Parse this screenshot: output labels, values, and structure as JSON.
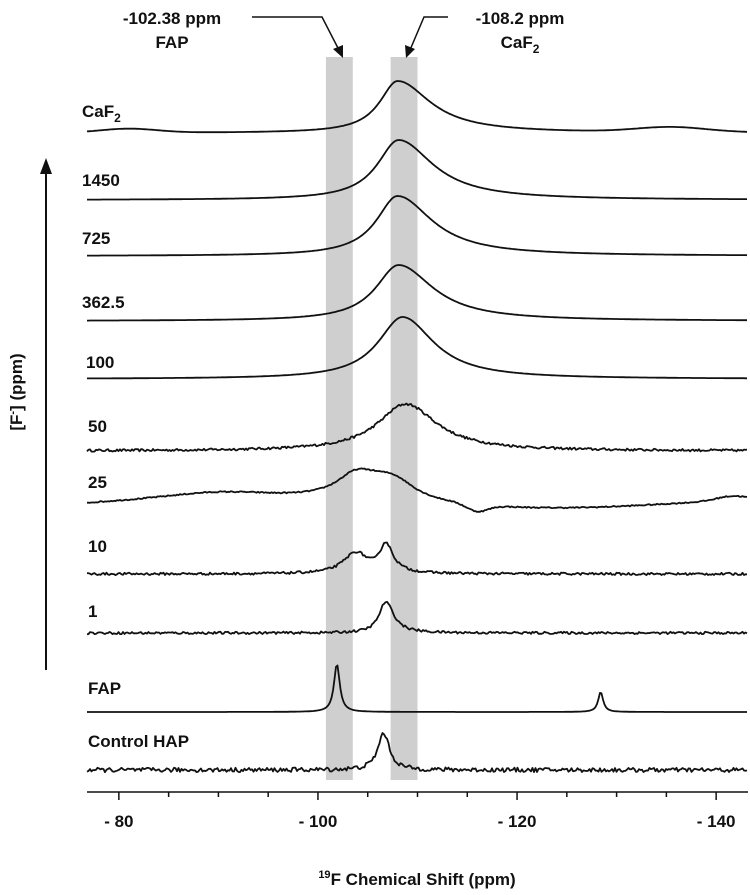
{
  "chart_data": {
    "type": "line",
    "title": "",
    "xlabel_sup": "19",
    "xlabel_main": "F Chemical Shift (ppm)",
    "ylabel_main": "[F",
    "ylabel_sup": "-",
    "ylabel_tail": "] (ppm)",
    "xlim": [
      -76.8,
      -143.2
    ],
    "x_reversed": true,
    "x_ticks": [
      -80,
      -100,
      -120,
      -140
    ],
    "x_tick_labels": [
      "- 80",
      "- 100",
      "- 120",
      "- 140"
    ],
    "grid": false,
    "legend": "none",
    "reference_bands": [
      {
        "label_line1": "-102.38 ppm",
        "label_line2": "FAP",
        "center": -102.15,
        "from": -100.8,
        "to": -103.5
      },
      {
        "label_line1": "-108.2 ppm",
        "label_line2": "CaF",
        "label_line2_sub": "2",
        "center": -108.2,
        "from": -107.3,
        "to": -110.0
      }
    ],
    "series": [
      {
        "name": "CaF",
        "name_sub": "2",
        "noise": 0.0,
        "tilt": 0,
        "baseline_features": [
          {
            "x": -81,
            "amp": 4,
            "w": 4
          },
          {
            "x": -135.5,
            "amp": 5,
            "w": 5
          }
        ],
        "peaks": [
          {
            "x": -108.0,
            "amp": 52,
            "wl": 2.2,
            "wr": 4.0
          }
        ]
      },
      {
        "name": "1450",
        "noise": 0.0,
        "tilt": 0,
        "peaks": [
          {
            "x": -108.1,
            "amp": 60,
            "wl": 2.6,
            "wr": 4.2
          }
        ]
      },
      {
        "name": "725",
        "noise": 0.0,
        "tilt": 0,
        "peaks": [
          {
            "x": -108.0,
            "amp": 60,
            "wl": 2.6,
            "wr": 4.2
          }
        ]
      },
      {
        "name": "362.5",
        "noise": 0.0,
        "tilt": 0,
        "peaks": [
          {
            "x": -108.1,
            "amp": 56,
            "wl": 2.8,
            "wr": 4.2
          }
        ]
      },
      {
        "name": "100",
        "noise": 0.0,
        "tilt": 0,
        "peaks": [
          {
            "x": -108.5,
            "amp": 62,
            "wl": 3.0,
            "wr": 3.8
          }
        ]
      },
      {
        "name": "50",
        "noise": 1.2,
        "tilt": 0,
        "peaks": [
          {
            "x": -108.8,
            "amp": 47,
            "wl": 3.4,
            "wr": 3.8
          }
        ]
      },
      {
        "name": "25",
        "noise": 0.6,
        "tilt": 6,
        "baseline_features": [
          {
            "x": -90,
            "amp": 4,
            "w": 6
          },
          {
            "x": -116,
            "amp": -7,
            "w": 1.5
          },
          {
            "x": -141.5,
            "amp": 4,
            "w": 2
          }
        ],
        "peaks": [
          {
            "x": -104.0,
            "amp": 27,
            "wl": 2.6,
            "wr": 3.5
          },
          {
            "x": -107.7,
            "amp": 16,
            "wl": 2.5,
            "wr": 2.5
          }
        ]
      },
      {
        "name": "10",
        "noise": 1.2,
        "tilt": 0,
        "peaks": [
          {
            "x": -103.8,
            "amp": 21,
            "wl": 1.5,
            "wr": 1.5
          },
          {
            "x": -106.8,
            "amp": 28,
            "wl": 0.7,
            "wr": 0.9
          }
        ]
      },
      {
        "name": "1",
        "noise": 1.2,
        "tilt": 0,
        "peaks": [
          {
            "x": -106.8,
            "amp": 31,
            "wl": 0.8,
            "wr": 1.0
          }
        ]
      },
      {
        "name": "FAP",
        "noise": 0.0,
        "tilt": 0,
        "peaks": [
          {
            "x": -101.9,
            "amp": 48,
            "wl": 0.35,
            "wr": 0.35
          },
          {
            "x": -128.4,
            "amp": 20,
            "wl": 0.3,
            "wr": 0.3
          }
        ]
      },
      {
        "name": "Control HAP",
        "noise": 2.2,
        "tilt": 0,
        "peaks": [
          {
            "x": -106.6,
            "amp": 37,
            "wl": 0.7,
            "wr": 0.7
          }
        ]
      }
    ]
  }
}
